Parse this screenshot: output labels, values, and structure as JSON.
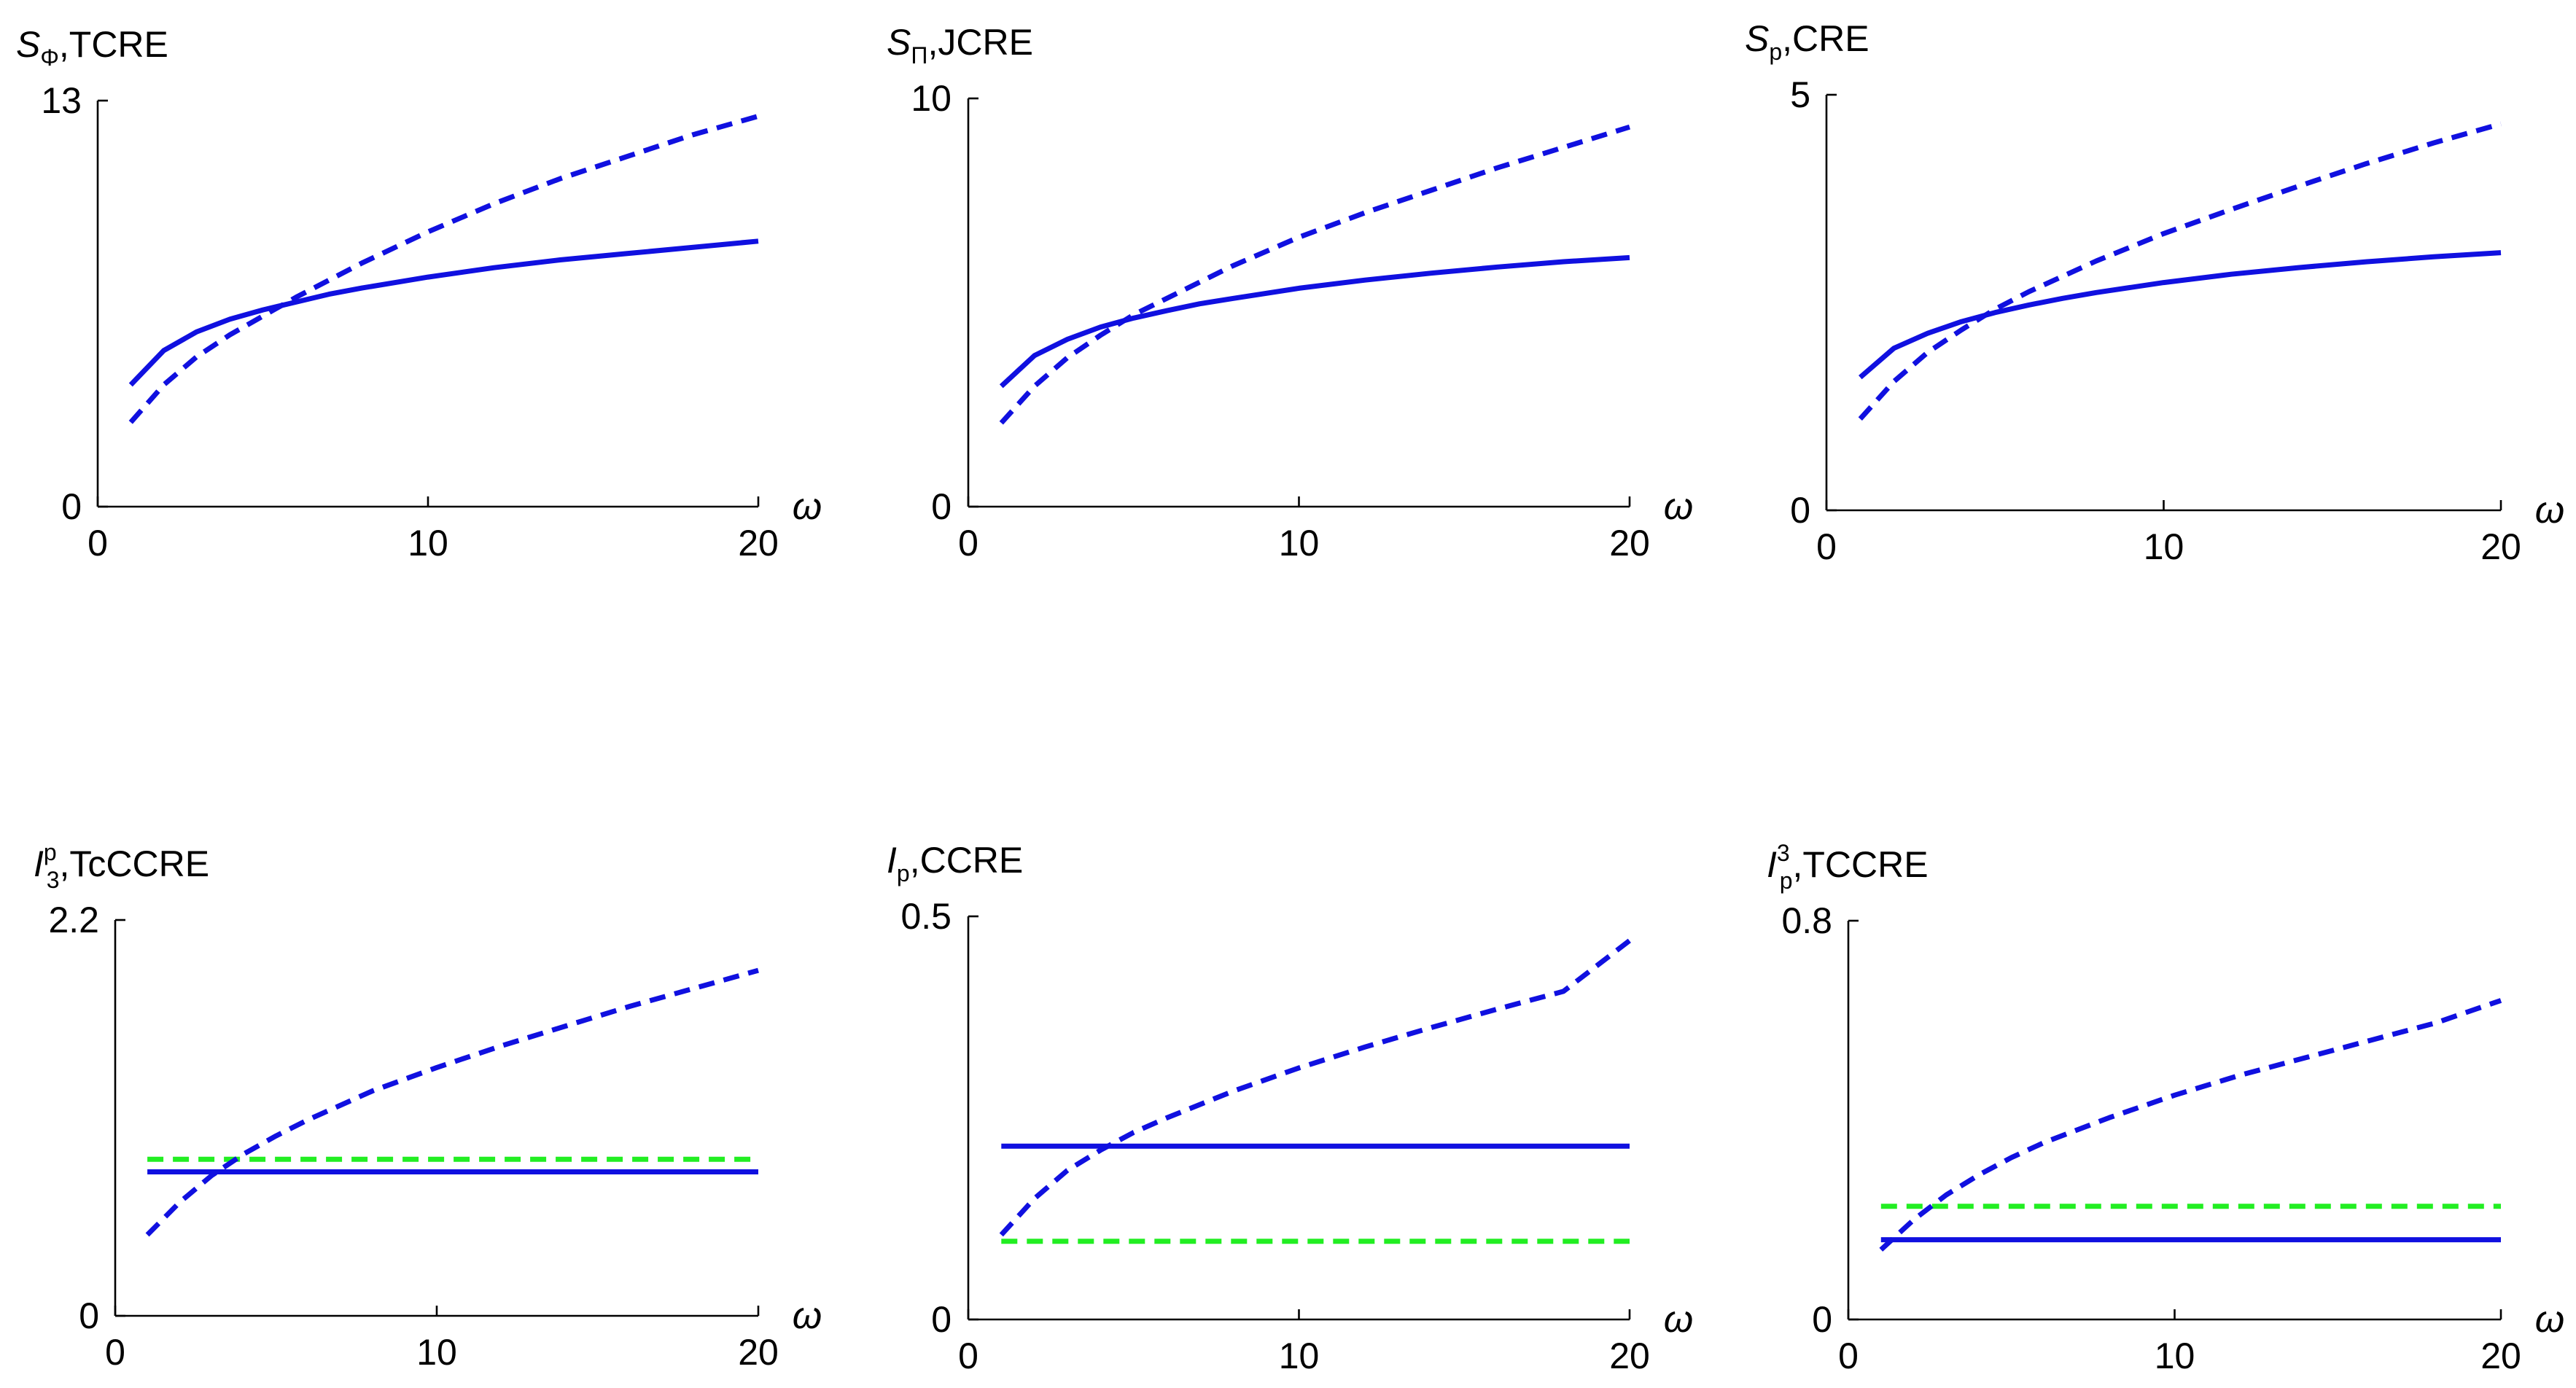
{
  "colors": {
    "blue": "#1010e0",
    "green": "#22ee22",
    "axis": "#000000"
  },
  "chart_data": [
    {
      "type": "line",
      "title": {
        "symbol": "S",
        "sub": "Φ",
        "sup": "",
        "suffix": ",TCRE"
      },
      "xlabel": "ω",
      "ylabel": "",
      "xlim": [
        0,
        20
      ],
      "ylim": [
        0,
        13
      ],
      "xticks": [
        "0",
        "10",
        "20"
      ],
      "yticks": [
        "0",
        "13"
      ],
      "series": [
        {
          "name": "solid",
          "color": "blue",
          "style": "solid",
          "x": [
            1,
            2,
            3,
            4,
            5,
            6,
            7,
            8,
            10,
            12,
            14,
            16,
            18,
            20
          ],
          "y": [
            3.9,
            5.0,
            5.6,
            6.0,
            6.3,
            6.55,
            6.8,
            7.0,
            7.35,
            7.65,
            7.9,
            8.1,
            8.3,
            8.5
          ]
        },
        {
          "name": "dashed",
          "color": "blue",
          "style": "dashed",
          "x": [
            1,
            2,
            3,
            4,
            5,
            6,
            8,
            10,
            12,
            14,
            16,
            18,
            20
          ],
          "y": [
            2.7,
            3.9,
            4.8,
            5.5,
            6.1,
            6.7,
            7.8,
            8.8,
            9.7,
            10.5,
            11.2,
            11.9,
            12.5
          ]
        }
      ]
    },
    {
      "type": "line",
      "title": {
        "symbol": "S",
        "sub": "Π",
        "sup": "",
        "suffix": ",JCRE"
      },
      "xlabel": "ω",
      "ylabel": "",
      "xlim": [
        0,
        20
      ],
      "ylim": [
        0,
        10
      ],
      "xticks": [
        "0",
        "10",
        "20"
      ],
      "yticks": [
        "0",
        "10"
      ],
      "series": [
        {
          "name": "solid",
          "color": "blue",
          "style": "solid",
          "x": [
            1,
            2,
            3,
            4,
            5,
            6,
            7,
            8,
            10,
            12,
            14,
            16,
            18,
            20
          ],
          "y": [
            2.95,
            3.7,
            4.1,
            4.4,
            4.62,
            4.8,
            4.97,
            5.1,
            5.35,
            5.55,
            5.72,
            5.87,
            6.0,
            6.1
          ]
        },
        {
          "name": "dashed",
          "color": "blue",
          "style": "dashed",
          "x": [
            1,
            2,
            3,
            4,
            5,
            6,
            8,
            10,
            12,
            14,
            16,
            18,
            20
          ],
          "y": [
            2.05,
            2.95,
            3.65,
            4.2,
            4.7,
            5.1,
            5.9,
            6.6,
            7.2,
            7.75,
            8.3,
            8.8,
            9.3
          ]
        }
      ]
    },
    {
      "type": "line",
      "title": {
        "symbol": "S",
        "sub": "p",
        "sup": "",
        "suffix": ",CRE"
      },
      "xlabel": "ω",
      "ylabel": "",
      "xlim": [
        0,
        20
      ],
      "ylim": [
        0,
        5
      ],
      "xticks": [
        "0",
        "10",
        "20"
      ],
      "yticks": [
        "0",
        "5"
      ],
      "series": [
        {
          "name": "solid",
          "color": "blue",
          "style": "solid",
          "x": [
            1,
            2,
            3,
            4,
            5,
            6,
            7,
            8,
            10,
            12,
            14,
            16,
            18,
            20
          ],
          "y": [
            1.6,
            1.95,
            2.13,
            2.27,
            2.38,
            2.47,
            2.55,
            2.62,
            2.74,
            2.84,
            2.92,
            2.99,
            3.05,
            3.1
          ]
        },
        {
          "name": "dashed",
          "color": "blue",
          "style": "dashed",
          "x": [
            1,
            2,
            3,
            4,
            5,
            6,
            8,
            10,
            12,
            14,
            16,
            18,
            20
          ],
          "y": [
            1.1,
            1.55,
            1.9,
            2.17,
            2.42,
            2.63,
            3.0,
            3.33,
            3.62,
            3.9,
            4.17,
            4.42,
            4.65
          ]
        }
      ]
    },
    {
      "type": "line",
      "title": {
        "symbol": "I",
        "sub": "3",
        "sup": "p",
        "suffix": ",TcCCRE"
      },
      "xlabel": "ω",
      "ylabel": "",
      "xlim": [
        0,
        20
      ],
      "ylim": [
        0,
        2.2
      ],
      "xticks": [
        "0",
        "10",
        "20"
      ],
      "yticks": [
        "0",
        "2.2"
      ],
      "series": [
        {
          "name": "solid",
          "color": "blue",
          "style": "solid",
          "x": [
            1,
            20
          ],
          "y": [
            0.8,
            0.8
          ]
        },
        {
          "name": "dashed-green",
          "color": "green",
          "style": "dashed",
          "x": [
            1,
            20
          ],
          "y": [
            0.87,
            0.87
          ]
        },
        {
          "name": "dashed",
          "color": "blue",
          "style": "dashed",
          "x": [
            1,
            2,
            3,
            4,
            5,
            6,
            8,
            10,
            12,
            14,
            16,
            18,
            20
          ],
          "y": [
            0.45,
            0.63,
            0.78,
            0.9,
            1.0,
            1.09,
            1.25,
            1.38,
            1.5,
            1.61,
            1.72,
            1.82,
            1.92
          ]
        }
      ]
    },
    {
      "type": "line",
      "title": {
        "symbol": "I",
        "sub": "p",
        "sup": "",
        "suffix": ",CCRE"
      },
      "xlabel": "ω",
      "ylabel": "",
      "xlim": [
        0,
        20
      ],
      "ylim": [
        0,
        0.5
      ],
      "xticks": [
        "0",
        "10",
        "20"
      ],
      "yticks": [
        "0",
        "0.5"
      ],
      "series": [
        {
          "name": "solid",
          "color": "blue",
          "style": "solid",
          "x": [
            1,
            20
          ],
          "y": [
            0.215,
            0.215
          ]
        },
        {
          "name": "dashed-green",
          "color": "green",
          "style": "dashed",
          "x": [
            1,
            20
          ],
          "y": [
            0.097,
            0.097
          ]
        },
        {
          "name": "dashed",
          "color": "blue",
          "style": "dashed",
          "x": [
            1,
            2,
            3,
            4,
            5,
            6,
            8,
            10,
            12,
            14,
            16,
            18,
            20
          ],
          "y": [
            0.105,
            0.15,
            0.185,
            0.21,
            0.232,
            0.25,
            0.283,
            0.312,
            0.338,
            0.362,
            0.385,
            0.407,
            0.47
          ]
        }
      ]
    },
    {
      "type": "line",
      "title": {
        "symbol": "I",
        "sub": "p",
        "sup": "3",
        "suffix": ",TCCRE"
      },
      "xlabel": "ω",
      "ylabel": "",
      "xlim": [
        0,
        20
      ],
      "ylim": [
        0,
        0.8
      ],
      "xticks": [
        "0",
        "10",
        "20"
      ],
      "yticks": [
        "0",
        "0.8"
      ],
      "series": [
        {
          "name": "solid",
          "color": "blue",
          "style": "solid",
          "x": [
            1,
            20
          ],
          "y": [
            0.16,
            0.16
          ]
        },
        {
          "name": "dashed-green",
          "color": "green",
          "style": "dashed",
          "x": [
            1,
            20
          ],
          "y": [
            0.227,
            0.227
          ]
        },
        {
          "name": "dashed",
          "color": "blue",
          "style": "dashed",
          "x": [
            1,
            2,
            3,
            4,
            5,
            6,
            8,
            10,
            12,
            14,
            16,
            18,
            20
          ],
          "y": [
            0.14,
            0.2,
            0.25,
            0.29,
            0.325,
            0.355,
            0.405,
            0.45,
            0.49,
            0.525,
            0.56,
            0.595,
            0.64
          ]
        }
      ]
    }
  ]
}
